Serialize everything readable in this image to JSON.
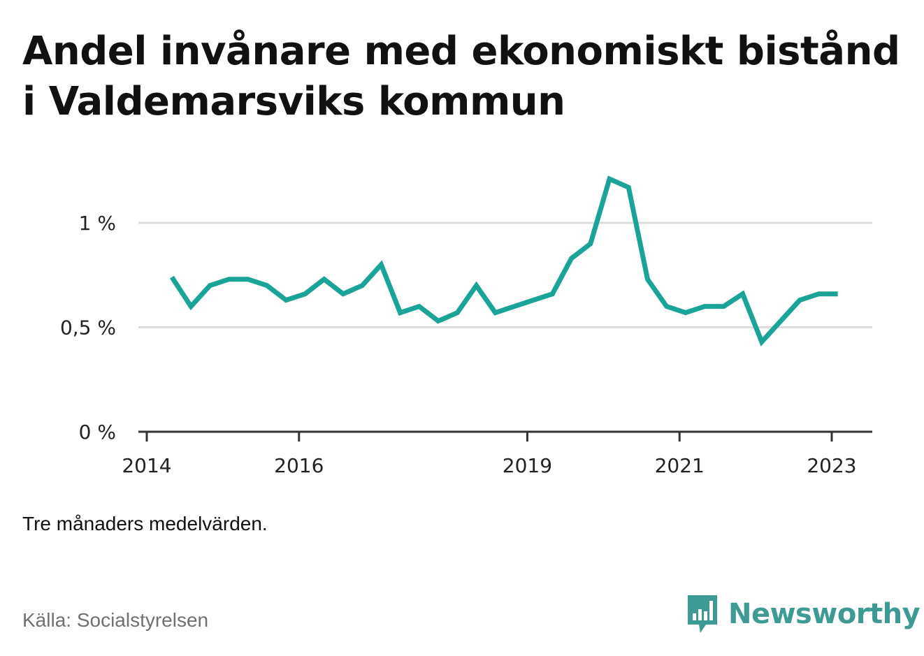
{
  "title": "Andel invånare med ekonomiskt bistånd i Valdemarsviks kommun",
  "note": "Tre månaders medelvärden.",
  "source": "Källa: Socialstyrelsen",
  "brand": {
    "name": "Newsworthy",
    "icon": "bar-chart-speech-bubble-icon",
    "color": "#3d9b93"
  },
  "colors": {
    "line": "#1aa497",
    "grid": "#dddddd",
    "axis": "#333333"
  },
  "chart_data": {
    "type": "line",
    "title": "Andel invånare med ekonomiskt bistånd i Valdemarsviks kommun",
    "xlabel": "",
    "ylabel": "",
    "ylim": [
      0,
      1.2
    ],
    "yticks": [
      {
        "value": 0,
        "label": "0 %"
      },
      {
        "value": 0.5,
        "label": "0,5 %"
      },
      {
        "value": 1,
        "label": "1 %"
      }
    ],
    "xticks": [
      {
        "value": 2014,
        "label": "2014"
      },
      {
        "value": 2016,
        "label": "2016"
      },
      {
        "value": 2019,
        "label": "2019"
      },
      {
        "value": 2021,
        "label": "2021"
      },
      {
        "value": 2023,
        "label": "2023"
      }
    ],
    "xlim": [
      2014,
      2023.5
    ],
    "grid": true,
    "legend": "none",
    "series": [
      {
        "x": [
          2014.33,
          2014.58,
          2014.83,
          2015.08,
          2015.33,
          2015.58,
          2015.83,
          2016.08,
          2016.33,
          2016.58,
          2016.83,
          2017.08,
          2017.33,
          2017.58,
          2017.83,
          2018.08,
          2018.33,
          2018.58,
          2018.83,
          2019.08,
          2019.33,
          2019.58,
          2019.83,
          2020.08,
          2020.33,
          2020.58,
          2020.83,
          2021.08,
          2021.33,
          2021.58,
          2021.83,
          2022.08,
          2022.33,
          2022.58,
          2022.83,
          2023.08
        ],
        "values": [
          0.74,
          0.6,
          0.7,
          0.73,
          0.73,
          0.7,
          0.63,
          0.66,
          0.73,
          0.66,
          0.7,
          0.8,
          0.57,
          0.6,
          0.53,
          0.57,
          0.7,
          0.57,
          0.6,
          0.63,
          0.66,
          0.83,
          0.9,
          1.21,
          1.17,
          0.73,
          0.6,
          0.57,
          0.6,
          0.6,
          0.66,
          0.43,
          0.53,
          0.63,
          0.66,
          0.66
        ]
      }
    ]
  }
}
